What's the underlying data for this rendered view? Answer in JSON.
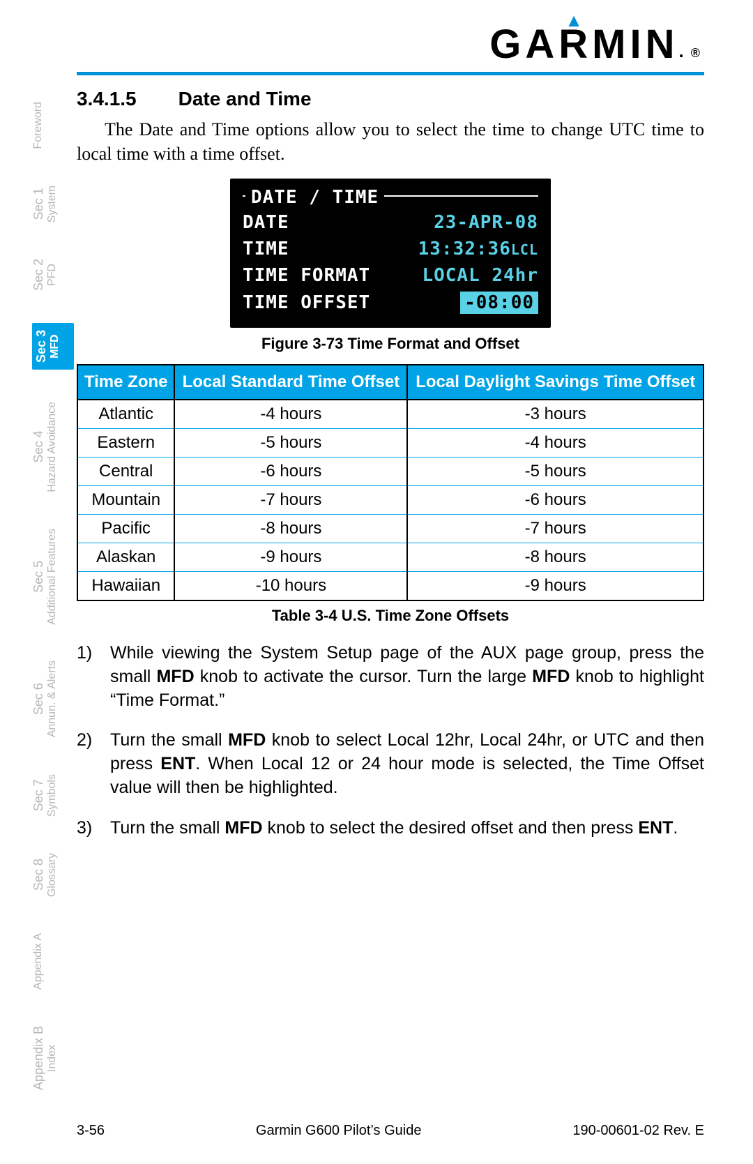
{
  "brand": {
    "name": "GARMIN",
    "accent_color": "#0090d6"
  },
  "tabs": [
    {
      "l1": "",
      "l2": "Foreword"
    },
    {
      "l1": "Sec 1",
      "l2": "System"
    },
    {
      "l1": "Sec 2",
      "l2": "PFD"
    },
    {
      "l1": "Sec 3",
      "l2": "MFD",
      "active": true
    },
    {
      "l1": "Sec 4",
      "l2": "Hazard Avoidance"
    },
    {
      "l1": "Sec 5",
      "l2": "Additional Features"
    },
    {
      "l1": "Sec 6",
      "l2": "Annun. & Alerts"
    },
    {
      "l1": "Sec 7",
      "l2": "Symbols"
    },
    {
      "l1": "Sec 8",
      "l2": "Glossary"
    },
    {
      "l1": "",
      "l2": "Appendix A"
    },
    {
      "l1": "Appendix B",
      "l2": "Index"
    }
  ],
  "section": {
    "num": "3.4.1.5",
    "title": "Date and Time"
  },
  "intro": "The Date and Time options allow you to select the time to change UTC time to local time with a time offset.",
  "panel": {
    "title": "DATE / TIME",
    "rows": [
      {
        "label": "DATE",
        "value": "23-APR-08"
      },
      {
        "label": "TIME",
        "value_main": "13:32:36",
        "value_suffix": "LCL"
      },
      {
        "label": "TIME FORMAT",
        "value": "LOCAL 24hr"
      },
      {
        "label": "TIME OFFSET",
        "value": "-08:00",
        "boxed": true
      }
    ],
    "text_color": "#ffffff",
    "value_color": "#5ad1e6",
    "background": "#000000"
  },
  "figure_caption": "Figure 3-73  Time Format and Offset",
  "tz_table": {
    "columns": [
      "Time Zone",
      "Local Standard Time Offset",
      "Local Daylight Savings Time Offset"
    ],
    "rows": [
      [
        "Atlantic",
        "-4 hours",
        "-3 hours"
      ],
      [
        "Eastern",
        "-5 hours",
        "-4 hours"
      ],
      [
        "Central",
        "-6 hours",
        "-5 hours"
      ],
      [
        "Mountain",
        "-7 hours",
        "-6 hours"
      ],
      [
        "Pacific",
        "-8 hours",
        "-7 hours"
      ],
      [
        "Alaskan",
        "-9 hours",
        "-8 hours"
      ],
      [
        "Hawaiian",
        "-10 hours",
        "-9 hours"
      ]
    ],
    "header_bg": "#00a3e5",
    "row_border": "#00a3e5"
  },
  "table_caption": "Table 3-4  U.S. Time Zone Offsets",
  "steps": [
    {
      "n": "1)",
      "pre": "While viewing the System Setup page of the AUX page group, press the small ",
      "b1": "MFD",
      "mid": " knob to activate the cursor. Turn the large ",
      "b2": "MFD",
      "post": " knob to highlight “Time Format.”"
    },
    {
      "n": "2)",
      "pre": "Turn the small ",
      "b1": "MFD",
      "mid": " knob to select Local 12hr, Local 24hr, or UTC and then press ",
      "b2": "ENT",
      "post": ". When Local 12 or 24 hour mode is selected, the Time Offset value will then be highlighted."
    },
    {
      "n": "3)",
      "pre": "Turn the small ",
      "b1": "MFD",
      "mid": " knob to select the desired offset and then press ",
      "b2": "ENT",
      "post": "."
    }
  ],
  "footer": {
    "page": "3-56",
    "title": "Garmin G600 Pilot’s Guide",
    "docnum": "190-00601-02  Rev. E"
  }
}
